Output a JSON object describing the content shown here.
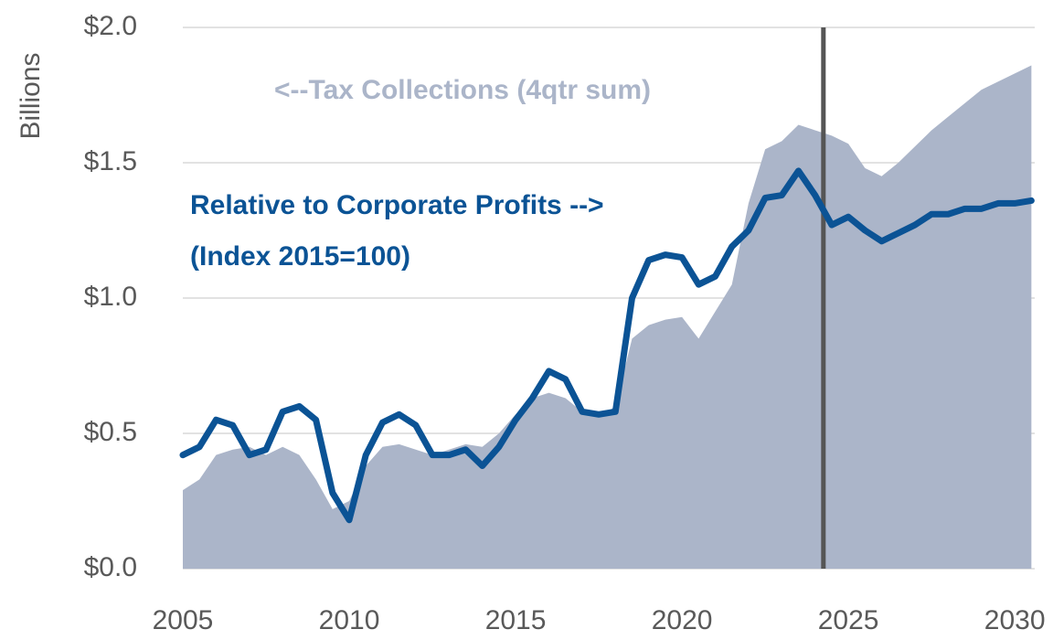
{
  "chart_data": {
    "type": "line",
    "y_label": "Billions",
    "x": [
      2005,
      2005.5,
      2006,
      2006.5,
      2007,
      2007.5,
      2008,
      2008.5,
      2009,
      2009.5,
      2010,
      2010.5,
      2011,
      2011.5,
      2012,
      2012.5,
      2013,
      2013.5,
      2014,
      2014.5,
      2015,
      2015.5,
      2016,
      2016.5,
      2017,
      2017.5,
      2018,
      2018.5,
      2019,
      2019.5,
      2020,
      2020.5,
      2021,
      2021.5,
      2022,
      2022.5,
      2023,
      2023.5,
      2024,
      2024.5,
      2025,
      2025.5,
      2026,
      2026.5,
      2027,
      2027.5,
      2028,
      2028.5,
      2029,
      2029.5,
      2030,
      2030.5
    ],
    "series": [
      {
        "name": "<--Tax Collections (4qtr sum)",
        "kind": "area",
        "color": "#abb5c9",
        "values": [
          0.29,
          0.33,
          0.42,
          0.44,
          0.45,
          0.42,
          0.45,
          0.42,
          0.33,
          0.22,
          0.25,
          0.38,
          0.45,
          0.46,
          0.44,
          0.42,
          0.44,
          0.46,
          0.45,
          0.5,
          0.57,
          0.63,
          0.65,
          0.63,
          0.58,
          0.56,
          0.6,
          0.85,
          0.9,
          0.92,
          0.93,
          0.85,
          0.95,
          1.05,
          1.35,
          1.55,
          1.58,
          1.64,
          1.62,
          1.6,
          1.57,
          1.48,
          1.45,
          1.5,
          1.56,
          1.62,
          1.67,
          1.72,
          1.77,
          1.8,
          1.83,
          1.86
        ]
      },
      {
        "name": "Relative to Corporate Profits -->",
        "unit_label": "(Index 2015=100)",
        "kind": "line",
        "color": "#0b5395",
        "values": [
          0.42,
          0.45,
          0.55,
          0.53,
          0.42,
          0.44,
          0.58,
          0.6,
          0.55,
          0.28,
          0.18,
          0.42,
          0.54,
          0.57,
          0.53,
          0.42,
          0.42,
          0.44,
          0.38,
          0.45,
          0.55,
          0.63,
          0.73,
          0.7,
          0.58,
          0.57,
          0.58,
          1.0,
          1.14,
          1.16,
          1.15,
          1.05,
          1.08,
          1.19,
          1.25,
          1.37,
          1.38,
          1.47,
          1.38,
          1.27,
          1.3,
          1.25,
          1.21,
          1.24,
          1.27,
          1.31,
          1.31,
          1.33,
          1.33,
          1.35,
          1.35,
          1.36
        ]
      }
    ],
    "vline_x": 2024.25,
    "vline_color": "#555555",
    "xlim": [
      2005,
      2030.6
    ],
    "xticks": [
      2005,
      2010,
      2015,
      2020,
      2025,
      2030
    ],
    "ylim": [
      0,
      2
    ],
    "yticks": [
      {
        "value": 0,
        "label": "$0.0"
      },
      {
        "value": 0.5,
        "label": "$0.5"
      },
      {
        "value": 1,
        "label": "$1.0"
      },
      {
        "value": 1.5,
        "label": "$1.5"
      },
      {
        "value": 2,
        "label": "$2.0"
      }
    ],
    "grid": true
  }
}
